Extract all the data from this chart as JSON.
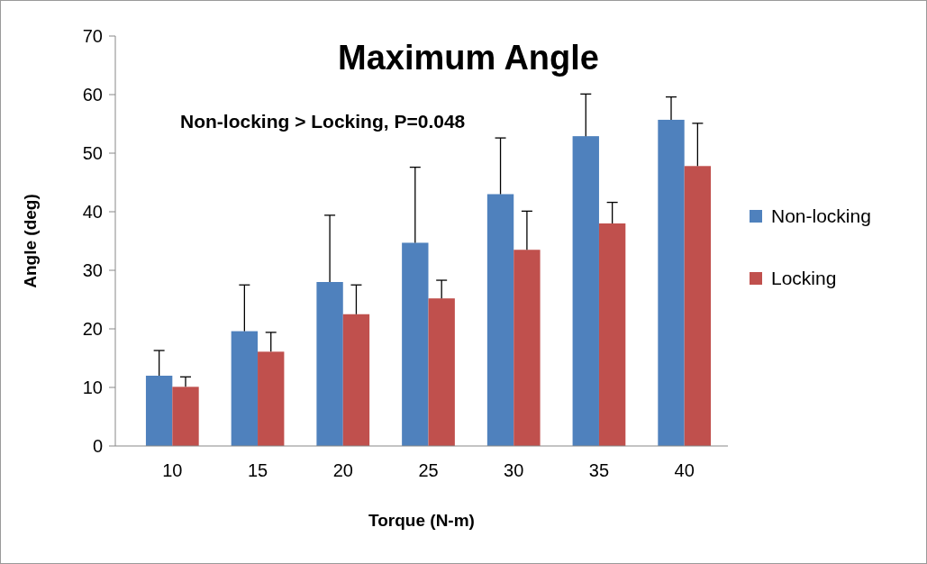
{
  "chart_data": {
    "type": "bar",
    "title": "Maximum Angle",
    "xlabel": "Torque (N-m)",
    "ylabel": "Angle (deg)",
    "annotations": [
      "Non-locking > Locking, P=0.048"
    ],
    "categories": [
      "10",
      "15",
      "20",
      "25",
      "30",
      "35",
      "40"
    ],
    "series": [
      {
        "name": "Non-locking",
        "color": "#4f81bd",
        "values": [
          12.0,
          19.6,
          28.0,
          34.7,
          43.0,
          52.9,
          55.7
        ],
        "errors": [
          [
            12.0,
            16.3
          ],
          [
            19.6,
            27.5
          ],
          [
            28.0,
            39.4
          ],
          [
            34.7,
            47.6
          ],
          [
            43.0,
            52.6
          ],
          [
            52.9,
            60.1
          ],
          [
            55.7,
            59.6
          ]
        ]
      },
      {
        "name": "Locking",
        "color": "#c0504d",
        "values": [
          10.1,
          16.1,
          22.5,
          25.2,
          33.5,
          38.0,
          47.8
        ],
        "errors": [
          [
            10.1,
            11.8
          ],
          [
            16.1,
            19.4
          ],
          [
            22.5,
            27.5
          ],
          [
            25.2,
            28.3
          ],
          [
            33.5,
            40.1
          ],
          [
            38.0,
            41.6
          ],
          [
            47.8,
            55.1
          ]
        ]
      }
    ],
    "ylim": [
      0,
      70
    ],
    "yticks": [
      0,
      10,
      20,
      30,
      40,
      50,
      60,
      70
    ],
    "grid": false,
    "legend": "right"
  }
}
